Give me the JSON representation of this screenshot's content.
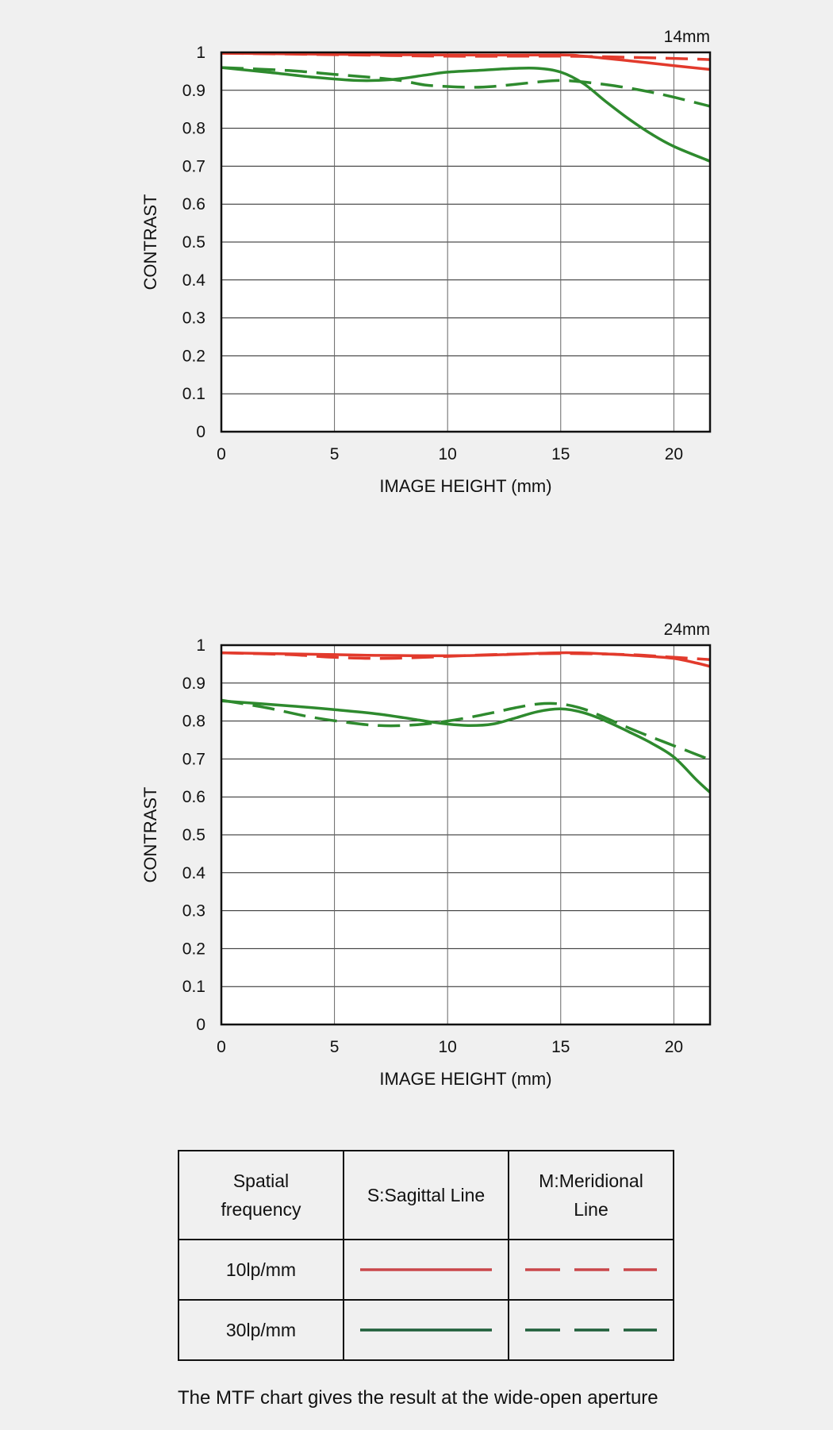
{
  "colors": {
    "freq10": "#e23a2c",
    "freq30": "#2e8a2e",
    "legend10": "#c9474a",
    "legend30": "#1f5f3a"
  },
  "chart_data": [
    {
      "type": "line",
      "focal_length": "14mm",
      "xlabel": "IMAGE HEIGHT (mm)",
      "ylabel": "CONTRAST",
      "xlim": [
        0,
        21.6
      ],
      "ylim": [
        0,
        1
      ],
      "xticks": [
        0,
        5,
        10,
        15,
        20
      ],
      "yticks": [
        0,
        0.1,
        0.2,
        0.3,
        0.4,
        0.5,
        0.6,
        0.7,
        0.8,
        0.9,
        1
      ],
      "grid": true,
      "series": [
        {
          "id": "s10",
          "freq": "10lp/mm",
          "line": "S:Sagittal",
          "style": "solid",
          "color": "freq10",
          "x": [
            0,
            5,
            10,
            15,
            16,
            18,
            20,
            21.6
          ],
          "y": [
            0.998,
            0.995,
            0.993,
            0.993,
            0.99,
            0.978,
            0.965,
            0.955
          ]
        },
        {
          "id": "m10",
          "freq": "10lp/mm",
          "line": "M:Meridional",
          "style": "dashed",
          "color": "freq10",
          "x": [
            0,
            5,
            10,
            15,
            18,
            20,
            21.6
          ],
          "y": [
            0.998,
            0.994,
            0.99,
            0.99,
            0.987,
            0.984,
            0.981
          ]
        },
        {
          "id": "s30",
          "freq": "30lp/mm",
          "line": "S:Sagittal",
          "style": "solid",
          "color": "freq30",
          "x": [
            0,
            2,
            4,
            6,
            7.5,
            9,
            10,
            11.5,
            13,
            14,
            15,
            16,
            17,
            18,
            19,
            20,
            21.6
          ],
          "y": [
            0.96,
            0.948,
            0.935,
            0.926,
            0.928,
            0.94,
            0.948,
            0.953,
            0.958,
            0.958,
            0.948,
            0.918,
            0.87,
            0.825,
            0.785,
            0.752,
            0.713
          ]
        },
        {
          "id": "m30",
          "freq": "30lp/mm",
          "line": "M:Meridional",
          "style": "dashed",
          "color": "freq30",
          "x": [
            0,
            3,
            5,
            7,
            8,
            9,
            10,
            11,
            12,
            14,
            15,
            16,
            17,
            18,
            19,
            20,
            21.6
          ],
          "y": [
            0.96,
            0.952,
            0.942,
            0.932,
            0.925,
            0.914,
            0.91,
            0.908,
            0.91,
            0.922,
            0.926,
            0.922,
            0.915,
            0.906,
            0.895,
            0.882,
            0.858
          ]
        }
      ]
    },
    {
      "type": "line",
      "focal_length": "24mm",
      "xlabel": "IMAGE HEIGHT (mm)",
      "ylabel": "CONTRAST",
      "xlim": [
        0,
        21.6
      ],
      "ylim": [
        0,
        1
      ],
      "xticks": [
        0,
        5,
        10,
        15,
        20
      ],
      "yticks": [
        0,
        0.1,
        0.2,
        0.3,
        0.4,
        0.5,
        0.6,
        0.7,
        0.8,
        0.9,
        1
      ],
      "grid": true,
      "series": [
        {
          "id": "s10",
          "freq": "10lp/mm",
          "line": "S:Sagittal",
          "style": "solid",
          "color": "freq10",
          "x": [
            0,
            3,
            5,
            7,
            10,
            12,
            15,
            17,
            19,
            20,
            21,
            21.6
          ],
          "y": [
            0.98,
            0.977,
            0.975,
            0.973,
            0.972,
            0.974,
            0.98,
            0.977,
            0.97,
            0.965,
            0.953,
            0.944
          ]
        },
        {
          "id": "m10",
          "freq": "10lp/mm",
          "line": "M:Meridional",
          "style": "dashed",
          "color": "freq10",
          "x": [
            0,
            3,
            5,
            7,
            9,
            12,
            15,
            18,
            20,
            21.6
          ],
          "y": [
            0.98,
            0.975,
            0.968,
            0.965,
            0.968,
            0.975,
            0.978,
            0.975,
            0.968,
            0.962
          ]
        },
        {
          "id": "s30",
          "freq": "30lp/mm",
          "line": "S:Sagittal",
          "style": "solid",
          "color": "freq30",
          "x": [
            0,
            3,
            5,
            7,
            9,
            10,
            11,
            12,
            13,
            14,
            15,
            16,
            17,
            18,
            19,
            20,
            21,
            21.6
          ],
          "y": [
            0.853,
            0.84,
            0.83,
            0.818,
            0.8,
            0.792,
            0.788,
            0.792,
            0.808,
            0.825,
            0.832,
            0.822,
            0.8,
            0.772,
            0.742,
            0.705,
            0.645,
            0.612
          ]
        },
        {
          "id": "m30",
          "freq": "30lp/mm",
          "line": "M:Meridional",
          "style": "dashed",
          "color": "freq30",
          "x": [
            0,
            2,
            4,
            6,
            7,
            8,
            9,
            10,
            11,
            12,
            13,
            14,
            15,
            16,
            17,
            18,
            19,
            20,
            21,
            21.6
          ],
          "y": [
            0.855,
            0.835,
            0.81,
            0.793,
            0.788,
            0.788,
            0.792,
            0.8,
            0.81,
            0.822,
            0.835,
            0.845,
            0.845,
            0.832,
            0.808,
            0.782,
            0.758,
            0.735,
            0.712,
            0.698
          ]
        }
      ]
    }
  ],
  "legend": {
    "header": {
      "col1": [
        "Spatial",
        "frequency"
      ],
      "col2": [
        "S:Sagittal Line"
      ],
      "col3": [
        "M:Meridional",
        "Line"
      ]
    },
    "rows": [
      {
        "label": "10lp/mm",
        "color": "legend10"
      },
      {
        "label": "30lp/mm",
        "color": "legend30"
      }
    ]
  },
  "footnote": "The MTF chart gives the result at the wide-open aperture"
}
